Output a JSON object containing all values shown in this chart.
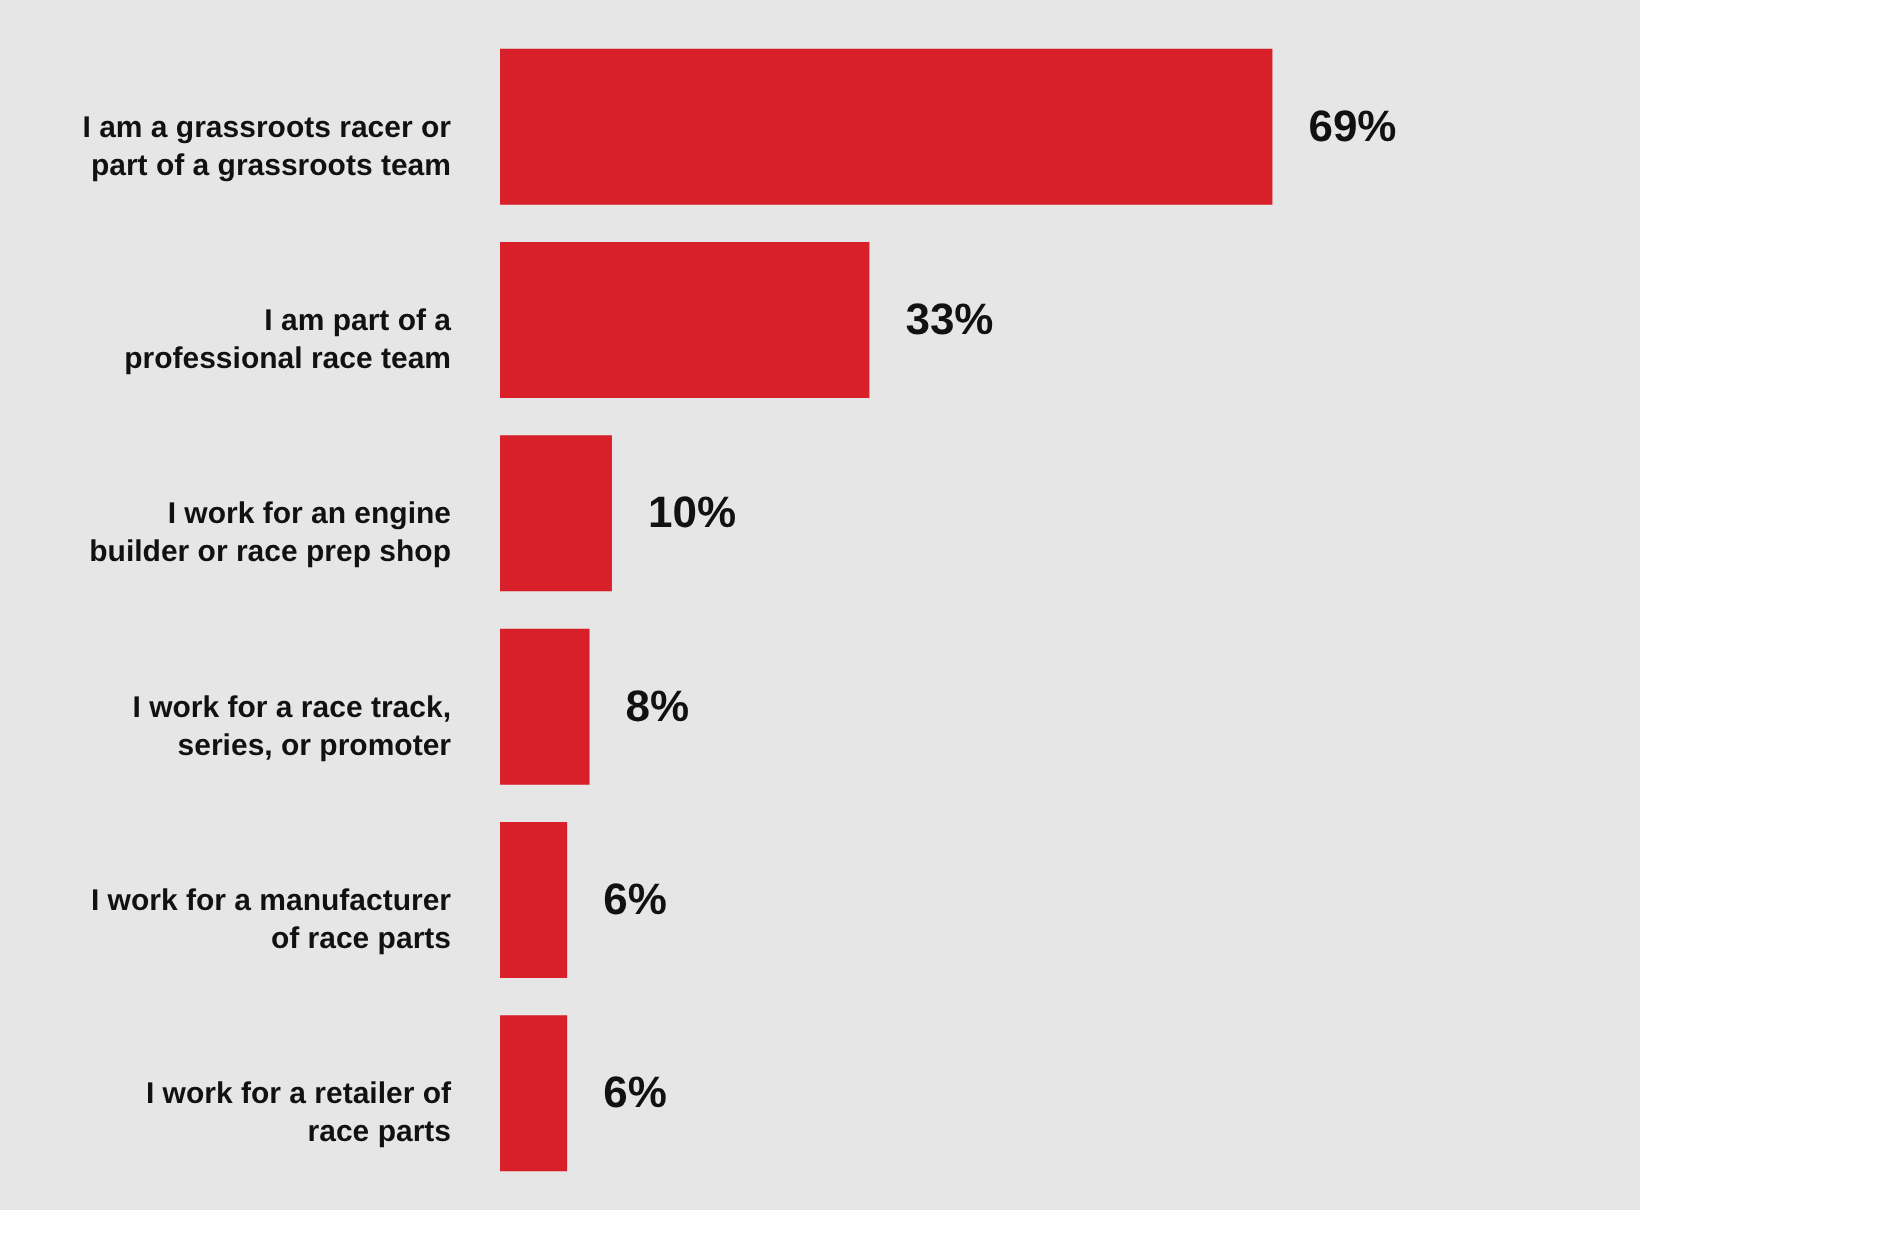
{
  "chart_data": {
    "type": "bar",
    "orientation": "horizontal",
    "categories": [
      "I am a grassroots racer or part of a grassroots team",
      "I am part of a professional race team",
      "I work for an engine builder or race prep shop",
      "I work for a race track, series, or promoter",
      "I work for a manufacturer of race parts",
      "I work for a retailer of race parts"
    ],
    "values": [
      69,
      33,
      10,
      8,
      6,
      6
    ],
    "value_labels": [
      "69%",
      "33%",
      "10%",
      "8%",
      "6%",
      "6%"
    ],
    "color": "#d8202a",
    "grid": false
  }
}
